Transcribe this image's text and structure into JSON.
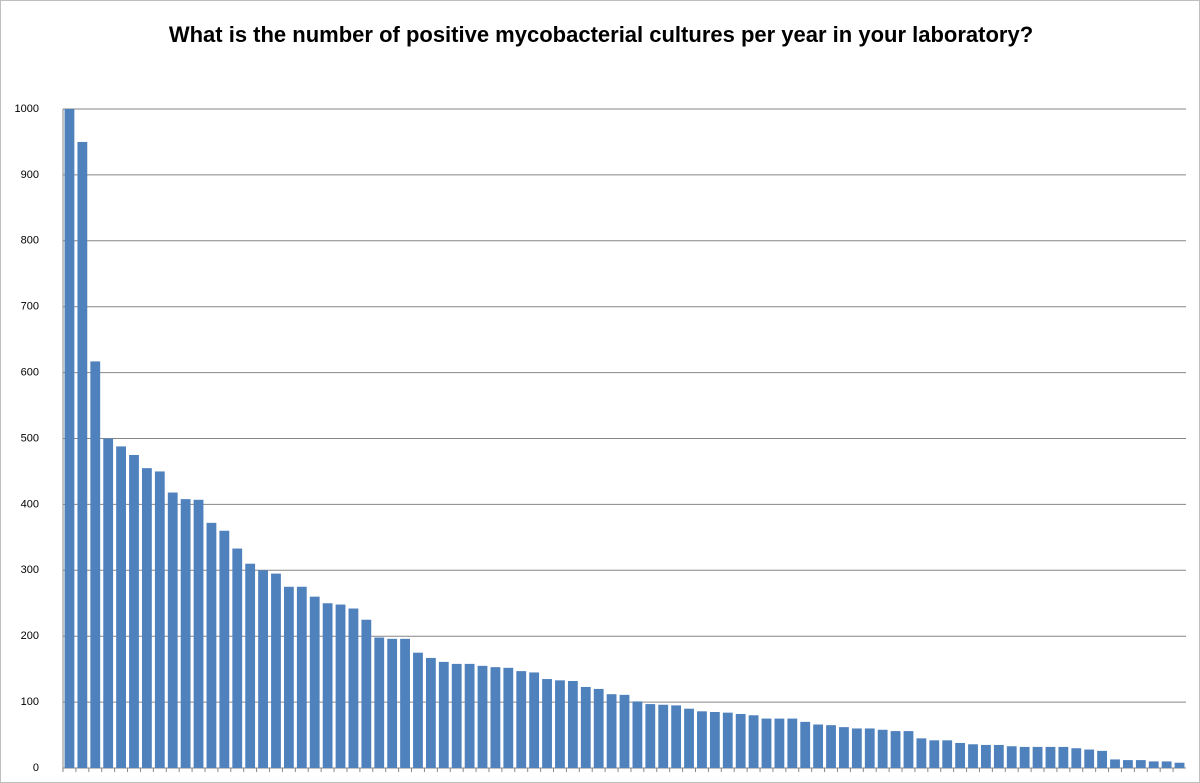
{
  "chart_data": {
    "type": "bar",
    "title": "What is the number of positive mycobacterial cultures per year in your laboratory?",
    "categories": [
      null,
      null,
      null,
      null,
      null,
      null,
      null,
      null,
      null,
      null,
      null,
      null,
      null,
      null,
      null,
      null,
      null,
      null,
      null,
      null,
      null,
      null,
      null,
      null,
      null,
      null,
      null,
      null,
      null,
      null,
      null,
      null,
      null,
      null,
      null,
      null,
      null,
      null,
      null,
      null,
      null,
      null,
      null,
      null,
      null,
      null,
      null,
      null,
      null,
      null,
      null,
      null,
      null,
      null,
      null,
      null,
      null,
      null,
      null,
      null,
      null,
      null,
      null,
      null,
      null,
      null,
      null,
      null,
      null,
      null,
      null,
      null,
      null,
      null,
      null,
      null,
      null,
      null,
      null,
      null,
      null,
      null,
      null,
      null,
      null,
      null,
      null
    ],
    "values": [
      1000,
      950,
      617,
      500,
      488,
      475,
      455,
      450,
      418,
      408,
      407,
      372,
      360,
      333,
      310,
      300,
      295,
      275,
      275,
      260,
      250,
      248,
      242,
      225,
      198,
      196,
      196,
      175,
      167,
      161,
      158,
      158,
      155,
      153,
      152,
      147,
      145,
      135,
      133,
      132,
      123,
      120,
      112,
      111,
      101,
      97,
      96,
      95,
      90,
      86,
      85,
      84,
      82,
      80,
      75,
      75,
      75,
      70,
      66,
      65,
      62,
      60,
      60,
      58,
      56,
      56,
      45,
      42,
      42,
      38,
      36,
      35,
      35,
      33,
      32,
      32,
      32,
      32,
      30,
      28,
      26,
      13,
      12,
      12,
      10,
      10,
      8
    ],
    "color": "#4f81bd",
    "ylim": [
      0,
      1000
    ],
    "yticks": [
      0,
      100,
      200,
      300,
      400,
      500,
      600,
      700,
      800,
      900,
      1000
    ],
    "grid": true
  }
}
